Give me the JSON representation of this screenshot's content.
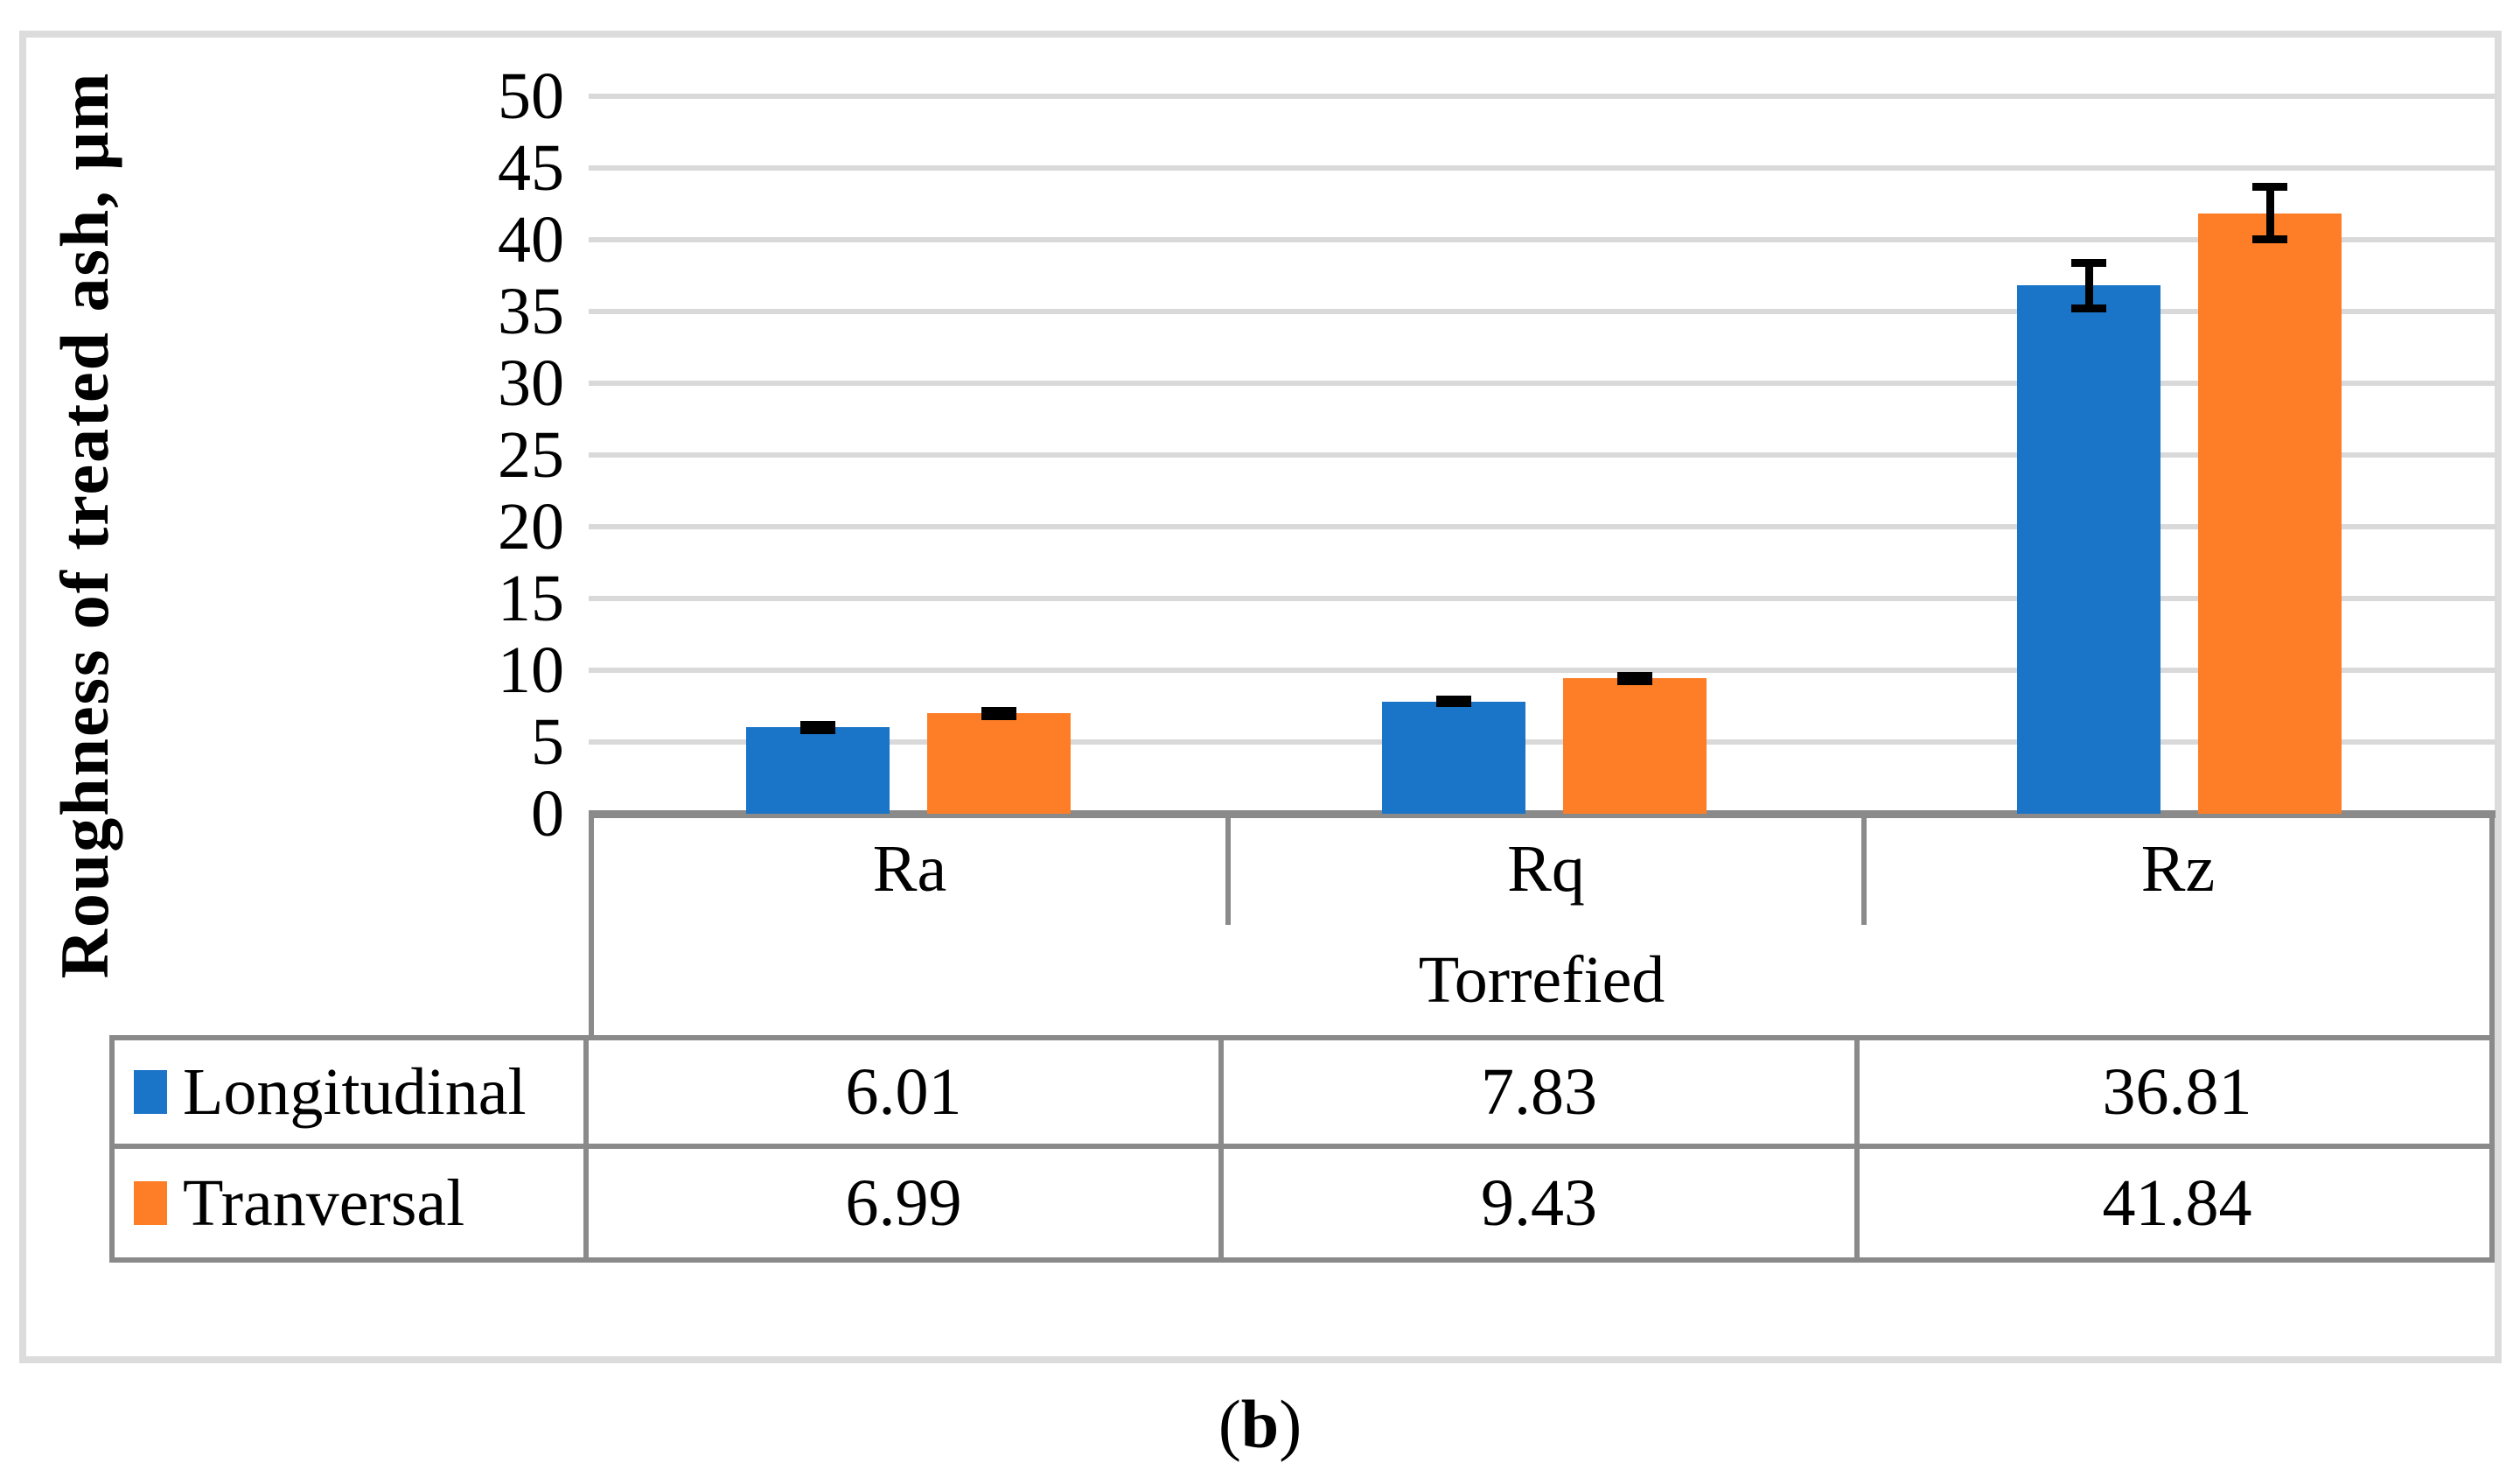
{
  "figure": {
    "caption_prefix": "(",
    "caption_letter": "b",
    "caption_suffix": ")"
  },
  "colors": {
    "longitudinal_blue": "#1a74c7",
    "tranversal_orange": "#fd7e26",
    "gridline_gray": "#d9d9d9",
    "axis_table_gray": "#8a8a8a",
    "frame_light_gray": "#dcdcdc",
    "error_bar_black": "#000000"
  },
  "chart_data": {
    "type": "bar",
    "title": "",
    "xlabel": "",
    "ylabel": "Roughness of treated ash, μm",
    "categories": [
      "Ra",
      "Rq",
      "Rz"
    ],
    "group_label": "Torrefied",
    "series": [
      {
        "name": "Longitudinal",
        "color": "#1a74c7",
        "values": [
          6.01,
          7.83,
          36.81
        ],
        "errors": [
          0.45,
          0.4,
          1.85
        ]
      },
      {
        "name": "Tranversal",
        "color": "#fd7e26",
        "values": [
          6.99,
          9.43,
          41.84
        ],
        "errors": [
          0.45,
          0.45,
          2.1
        ]
      }
    ],
    "ylim": [
      0,
      50
    ],
    "y_ticks": [
      0,
      5,
      10,
      15,
      20,
      25,
      30,
      35,
      40,
      45,
      50
    ],
    "grid": true,
    "legend_position": "data-table-left",
    "error_bars": true
  }
}
